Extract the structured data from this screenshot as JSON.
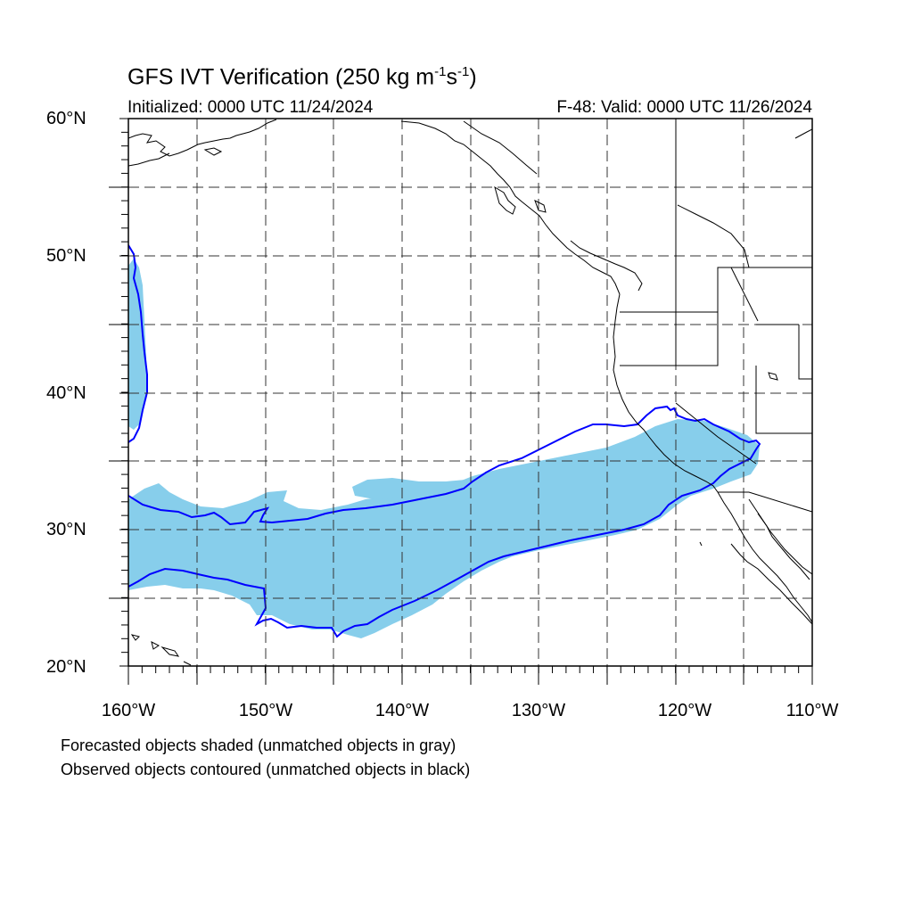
{
  "title_main": "GFS IVT Verification (250 kg m",
  "title_sup1": "-1",
  "title_mid": "s",
  "title_sup2": "-1",
  "title_end": ")",
  "initialized": "Initialized: 0000 UTC 11/24/2024",
  "valid": "F-48: Valid: 0000 UTC 11/26/2024",
  "lat_labels": [
    "60°N",
    "50°N",
    "40°N",
    "30°N",
    "20°N"
  ],
  "lon_labels": [
    "160°W",
    "150°W",
    "140°W",
    "130°W",
    "120°W",
    "110°W"
  ],
  "caption_forecast": "Forecasted objects shaded (unmatched objects in gray)",
  "caption_observed": "Observed objects contoured (unmatched objects in black)",
  "colors": {
    "forecast_fill": "#87CEEB",
    "observed_contour": "#0000FF",
    "coastline": "#000000",
    "grid": "#333333"
  },
  "map_extent": {
    "lon_min": -160,
    "lon_max": -110,
    "lat_min": 20,
    "lat_max": 60
  }
}
